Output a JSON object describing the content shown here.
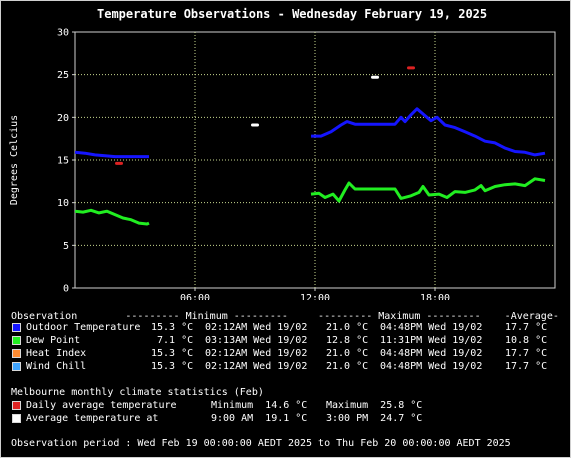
{
  "chart_data": {
    "type": "line",
    "title": "Temperature Observations - Wednesday February 19, 2025",
    "ylabel": "Degrees Celcius",
    "xlabel": "",
    "ylim": [
      0,
      30
    ],
    "xlim": [
      0,
      24
    ],
    "y_ticks": [
      "0",
      "5",
      "10",
      "15",
      "20",
      "25",
      "30"
    ],
    "y_tick_values": [
      0,
      5,
      10,
      15,
      20,
      25,
      30
    ],
    "x_ticks": [
      "06:00",
      "12:00",
      "18:00"
    ],
    "x_tick_values": [
      6,
      12,
      18
    ],
    "grid": true,
    "series": [
      {
        "name": "Outdoor Temperature",
        "color": "#1515ff",
        "segments": [
          [
            [
              0,
              15.9
            ],
            [
              0.5,
              15.8
            ],
            [
              1.0,
              15.6
            ],
            [
              1.5,
              15.5
            ],
            [
              2.0,
              15.4
            ],
            [
              2.5,
              15.4
            ],
            [
              3.0,
              15.4
            ],
            [
              3.7,
              15.4
            ]
          ],
          [
            [
              11.8,
              17.8
            ],
            [
              12.3,
              17.8
            ],
            [
              12.8,
              18.3
            ],
            [
              13.3,
              19.1
            ],
            [
              13.6,
              19.5
            ],
            [
              14.0,
              19.2
            ],
            [
              15.0,
              19.2
            ],
            [
              16.0,
              19.2
            ],
            [
              16.3,
              20.0
            ],
            [
              16.5,
              19.5
            ],
            [
              16.8,
              20.3
            ],
            [
              17.1,
              21.0
            ],
            [
              17.5,
              20.2
            ],
            [
              17.8,
              19.6
            ],
            [
              18.1,
              20.0
            ],
            [
              18.5,
              19.1
            ],
            [
              19.0,
              18.8
            ],
            [
              19.5,
              18.3
            ],
            [
              20.0,
              17.8
            ],
            [
              20.5,
              17.2
            ],
            [
              21.0,
              17.0
            ],
            [
              21.5,
              16.4
            ],
            [
              22.0,
              16.0
            ],
            [
              22.5,
              15.9
            ],
            [
              23.0,
              15.6
            ],
            [
              23.5,
              15.8
            ]
          ]
        ]
      },
      {
        "name": "Dew Point",
        "color": "#21ee21",
        "segments": [
          [
            [
              0,
              9.0
            ],
            [
              0.4,
              8.9
            ],
            [
              0.8,
              9.1
            ],
            [
              1.2,
              8.8
            ],
            [
              1.6,
              9.0
            ],
            [
              2.0,
              8.6
            ],
            [
              2.4,
              8.2
            ],
            [
              2.8,
              8.0
            ],
            [
              3.2,
              7.6
            ],
            [
              3.6,
              7.5
            ],
            [
              3.7,
              7.6
            ]
          ],
          [
            [
              11.8,
              11.0
            ],
            [
              12.2,
              11.1
            ],
            [
              12.5,
              10.6
            ],
            [
              12.9,
              11.0
            ],
            [
              13.2,
              10.2
            ],
            [
              13.5,
              11.5
            ],
            [
              13.7,
              12.3
            ],
            [
              14.0,
              11.6
            ],
            [
              15.0,
              11.6
            ],
            [
              16.0,
              11.6
            ],
            [
              16.3,
              10.5
            ],
            [
              16.8,
              10.8
            ],
            [
              17.2,
              11.2
            ],
            [
              17.4,
              11.9
            ],
            [
              17.7,
              10.9
            ],
            [
              18.2,
              11.0
            ],
            [
              18.6,
              10.6
            ],
            [
              19.0,
              11.3
            ],
            [
              19.5,
              11.2
            ],
            [
              20.0,
              11.5
            ],
            [
              20.3,
              12.0
            ],
            [
              20.5,
              11.4
            ],
            [
              21.0,
              11.9
            ],
            [
              21.5,
              12.1
            ],
            [
              22.0,
              12.2
            ],
            [
              22.5,
              12.0
            ],
            [
              23.0,
              12.8
            ],
            [
              23.5,
              12.6
            ]
          ]
        ]
      }
    ],
    "markers": [
      {
        "name": "Daily average temperature",
        "color": "#dd2222",
        "points": [
          [
            2.2,
            14.6
          ],
          [
            16.8,
            25.8
          ]
        ]
      },
      {
        "name": "Average temperature at",
        "color": "#ffffff",
        "points": [
          [
            9.0,
            19.1
          ],
          [
            15.0,
            24.7
          ]
        ]
      }
    ]
  },
  "legend": {
    "header": "Observation        --------- Minimum ---------     --------- Maximum ---------    -Average-",
    "rows": [
      {
        "color": "#1515ff",
        "label": "Outdoor Temperature",
        "min": "15.3 °C",
        "min_time": "02:12AM Wed 19/02",
        "max": "21.0 °C",
        "max_time": "04:48PM Wed 19/02",
        "avg": "17.7 °C"
      },
      {
        "color": "#21ee21",
        "label": "Dew Point",
        "min": " 7.1 °C",
        "min_time": "03:13AM Wed 19/02",
        "max": "12.8 °C",
        "max_time": "11:31PM Wed 19/02",
        "avg": "10.8 °C"
      },
      {
        "color": "#ff8c32",
        "label": "Heat Index",
        "min": "15.3 °C",
        "min_time": "02:12AM Wed 19/02",
        "max": "21.0 °C",
        "max_time": "04:48PM Wed 19/02",
        "avg": "17.7 °C"
      },
      {
        "color": "#3fa4ff",
        "label": "Wind Chill",
        "min": "15.3 °C",
        "min_time": "02:12AM Wed 19/02",
        "max": "21.0 °C",
        "max_time": "04:48PM Wed 19/02",
        "avg": "17.7 °C"
      }
    ]
  },
  "climate": {
    "header": "Melbourne monthly climate statistics (Feb)",
    "rows": [
      {
        "color": "#dd2222",
        "label": "Daily average temperature",
        "left": "Minimum  14.6 °C",
        "right": "Maximum  25.8 °C"
      },
      {
        "color": "#ffffff",
        "label": "Average temperature at",
        "left": "9:00 AM  19.1 °C",
        "right": "3:00 PM  24.7 °C"
      }
    ]
  },
  "footer": "Observation period : Wed Feb 19 00:00:00 AEDT 2025 to Thu Feb 20 00:00:00 AEDT 2025"
}
